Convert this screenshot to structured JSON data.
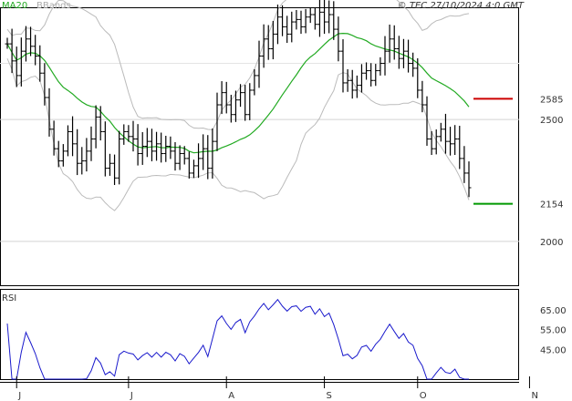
{
  "header": {
    "ma_label": "MA20",
    "bb_label": "BBands",
    "copyright": "© TEC 27/10/2024 4:0 GMT"
  },
  "price_axis": {
    "ticks": [
      {
        "label": "2500",
        "value": 2500
      },
      {
        "label": "2000",
        "value": 2000
      }
    ]
  },
  "levels": [
    {
      "label": "2585",
      "value": 2585,
      "color": "#cc0000"
    },
    {
      "label": "2154",
      "value": 2154,
      "color": "#009900"
    }
  ],
  "rsi_panel": {
    "title": "RSI",
    "ticks": [
      {
        "label": "65.00",
        "value": 65
      },
      {
        "label": "55.00",
        "value": 55
      },
      {
        "label": "45.00",
        "value": 45
      }
    ]
  },
  "x_axis": {
    "ticks": [
      "J",
      "J",
      "A",
      "S",
      "O",
      "N"
    ]
  },
  "colors": {
    "ma": "#22aa22",
    "bbands": "#bbbbbb",
    "rsi": "#1a1acc",
    "bars": "#000000"
  },
  "chart_data": {
    "type": "ohlc",
    "ylim": [
      1820,
      2960
    ],
    "rsi_ylim": [
      30,
      75
    ],
    "month_start_index": [
      2,
      26,
      47,
      68,
      88,
      112
    ],
    "close": [
      2810,
      2740,
      2680,
      2780,
      2830,
      2800,
      2760,
      2690,
      2590,
      2460,
      2380,
      2330,
      2370,
      2450,
      2400,
      2320,
      2330,
      2370,
      2420,
      2510,
      2450,
      2300,
      2320,
      2260,
      2420,
      2450,
      2430,
      2420,
      2360,
      2390,
      2410,
      2370,
      2400,
      2360,
      2390,
      2370,
      2320,
      2360,
      2340,
      2280,
      2310,
      2340,
      2380,
      2300,
      2410,
      2560,
      2610,
      2560,
      2520,
      2580,
      2610,
      2520,
      2620,
      2680,
      2760,
      2830,
      2790,
      2850,
      2920,
      2880,
      2850,
      2900,
      2910,
      2880,
      2920,
      2930,
      2890,
      2940,
      2900,
      2930,
      2870,
      2780,
      2650,
      2660,
      2620,
      2640,
      2690,
      2700,
      2660,
      2700,
      2730,
      2780,
      2830,
      2790,
      2750,
      2780,
      2730,
      2710,
      2620,
      2560,
      2420,
      2380,
      2430,
      2460,
      2410,
      2400,
      2420,
      2340,
      2280,
      2220
    ]
  }
}
